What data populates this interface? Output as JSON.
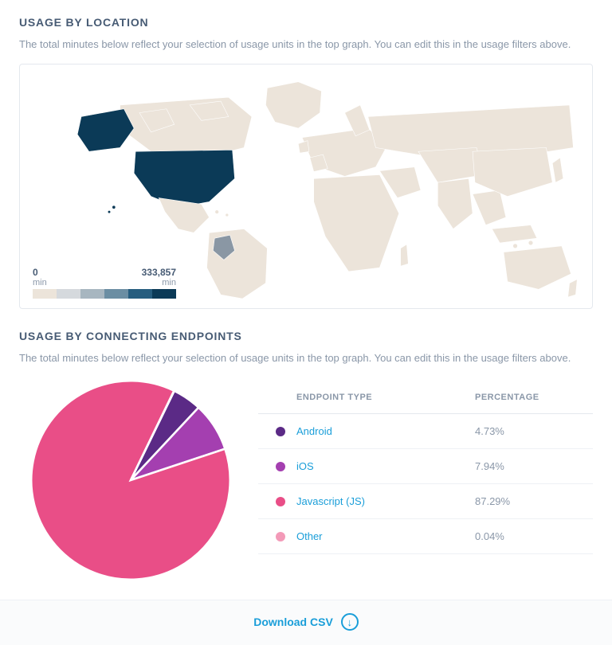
{
  "location": {
    "title": "USAGE BY LOCATION",
    "subtitle": "The total minutes below reflect your selection of usage units in the top graph. You can edit this in the usage filters above.",
    "legend": {
      "min_value": "0",
      "min_unit": "min",
      "max_value": "333,857",
      "max_unit": "min",
      "colors": [
        "#ece4da",
        "#d5d9dd",
        "#a7b6c0",
        "#6b8ea3",
        "#265d7f",
        "#0b3a57"
      ]
    },
    "map": {
      "base_fill": "#f2f0ec",
      "base_stroke": "#ffffff",
      "highlights": [
        {
          "name": "united-states",
          "fill": "#0b3a57"
        },
        {
          "name": "ecuador-peru",
          "fill": "#8a97a4"
        }
      ],
      "light_fill": "#ece4da"
    }
  },
  "endpoints": {
    "title": "USAGE BY CONNECTING ENDPOINTS",
    "subtitle": "The total minutes below reflect your selection of usage units in the top graph. You can edit this in the usage filters above.",
    "columns": {
      "type": "ENDPOINT TYPE",
      "pct": "PERCENTAGE"
    },
    "rows": [
      {
        "label": "Android",
        "pct": "4.73%",
        "value": 4.73,
        "color": "#5b2a86"
      },
      {
        "label": "iOS",
        "pct": "7.94%",
        "value": 7.94,
        "color": "#a43fb0"
      },
      {
        "label": "Javascript (JS)",
        "pct": "87.29%",
        "value": 87.29,
        "color": "#e94e87"
      },
      {
        "label": "Other",
        "pct": "0.04%",
        "value": 0.04,
        "color": "#f39ab8"
      }
    ],
    "pie": {
      "stroke": "#ffffff",
      "stroke_width": 2,
      "start_angle_deg": -64
    }
  },
  "download": {
    "label": "Download CSV"
  }
}
